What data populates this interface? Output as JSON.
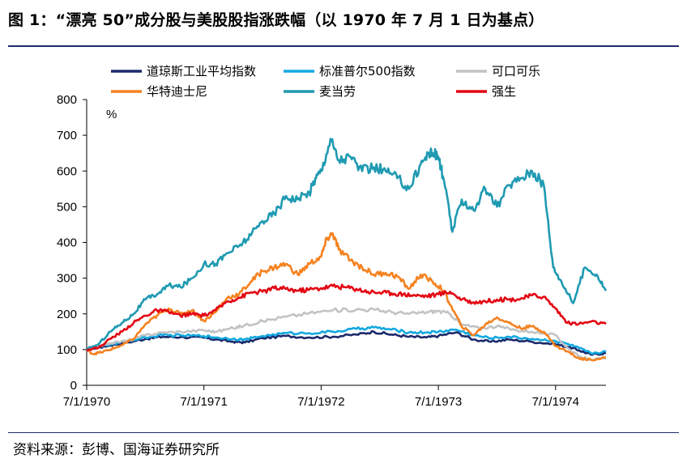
{
  "header": {
    "title": "图 1：“漂亮 50”成分股与美股股指涨跌幅（以 1970 年 7 月 1 日为基点）"
  },
  "footer": {
    "source": "资料来源：彭博、国海证券研究所"
  },
  "colors": {
    "rule": "#1f2a6b"
  },
  "chart_data": {
    "type": "line",
    "title": "",
    "ylabel": "%",
    "xlabel": "",
    "ylim": [
      0,
      800
    ],
    "xlim": [
      1970.5,
      1974.93
    ],
    "yticks": [
      0,
      100,
      200,
      300,
      400,
      500,
      600,
      700,
      800
    ],
    "xticks": [
      {
        "value": 1970.5,
        "label": "7/1/1970"
      },
      {
        "value": 1971.5,
        "label": "7/1/1971"
      },
      {
        "value": 1972.5,
        "label": "7/1/1972"
      },
      {
        "value": 1973.5,
        "label": "7/1/1973"
      },
      {
        "value": 1974.5,
        "label": "7/1/1974"
      }
    ],
    "grid": false,
    "legend_placement": "top",
    "series": [
      {
        "name": "道琼斯工业平均指数",
        "color": "#1b2a6b",
        "x": [
          1970.5,
          1970.6,
          1970.7,
          1970.85,
          1971.0,
          1971.15,
          1971.3,
          1971.5,
          1971.6,
          1971.75,
          1971.85,
          1972.0,
          1972.2,
          1972.4,
          1972.6,
          1972.8,
          1972.95,
          1973.1,
          1973.25,
          1973.4,
          1973.5,
          1973.65,
          1973.8,
          1973.95,
          1974.1,
          1974.3,
          1974.5,
          1974.6,
          1974.7,
          1974.8,
          1974.93
        ],
        "y": [
          100,
          106,
          112,
          120,
          130,
          136,
          135,
          133,
          128,
          122,
          120,
          132,
          138,
          134,
          136,
          142,
          150,
          142,
          136,
          134,
          138,
          148,
          128,
          122,
          128,
          122,
          115,
          108,
          98,
          86,
          90
        ]
      },
      {
        "name": "标准普尔500指数",
        "color": "#12a8e0",
        "x": [
          1970.5,
          1970.6,
          1970.7,
          1970.85,
          1971.0,
          1971.15,
          1971.3,
          1971.5,
          1971.6,
          1971.75,
          1971.85,
          1972.0,
          1972.2,
          1972.4,
          1972.6,
          1972.8,
          1972.95,
          1973.1,
          1973.25,
          1973.4,
          1973.5,
          1973.65,
          1973.8,
          1973.95,
          1974.1,
          1974.3,
          1974.5,
          1974.6,
          1974.7,
          1974.8,
          1974.93
        ],
        "y": [
          100,
          108,
          115,
          124,
          134,
          140,
          140,
          138,
          134,
          130,
          128,
          138,
          146,
          146,
          150,
          158,
          162,
          156,
          148,
          148,
          150,
          156,
          140,
          132,
          136,
          130,
          124,
          116,
          104,
          90,
          94
        ]
      },
      {
        "name": "可口可乐",
        "color": "#c3c3c3",
        "x": [
          1970.5,
          1970.6,
          1970.7,
          1970.85,
          1971.0,
          1971.15,
          1971.3,
          1971.5,
          1971.6,
          1971.75,
          1971.85,
          1972.0,
          1972.2,
          1972.4,
          1972.6,
          1972.8,
          1972.95,
          1973.1,
          1973.25,
          1973.4,
          1973.5,
          1973.6,
          1973.7,
          1973.85,
          1974.0,
          1974.15,
          1974.3,
          1974.5,
          1974.6,
          1974.7,
          1974.8,
          1974.93
        ],
        "y": [
          100,
          110,
          118,
          125,
          140,
          148,
          150,
          154,
          150,
          160,
          168,
          180,
          192,
          202,
          210,
          212,
          212,
          205,
          200,
          205,
          208,
          200,
          170,
          160,
          165,
          155,
          150,
          140,
          105,
          80,
          72,
          75
        ]
      },
      {
        "name": "华特迪士尼",
        "color": "#f58220",
        "x": [
          1970.5,
          1970.55,
          1970.62,
          1970.7,
          1970.8,
          1970.9,
          1971.0,
          1971.1,
          1971.2,
          1971.3,
          1971.4,
          1971.5,
          1971.6,
          1971.7,
          1971.8,
          1971.9,
          1972.0,
          1972.1,
          1972.2,
          1972.3,
          1972.4,
          1972.5,
          1972.55,
          1972.6,
          1972.65,
          1972.75,
          1972.85,
          1972.95,
          1973.05,
          1973.15,
          1973.25,
          1973.35,
          1973.45,
          1973.55,
          1973.6,
          1973.7,
          1973.8,
          1973.9,
          1974.0,
          1974.1,
          1974.2,
          1974.3,
          1974.4,
          1974.5,
          1974.6,
          1974.7,
          1974.8,
          1974.93
        ],
        "y": [
          100,
          88,
          92,
          100,
          112,
          130,
          170,
          195,
          215,
          200,
          210,
          180,
          205,
          245,
          255,
          290,
          320,
          330,
          340,
          310,
          340,
          360,
          410,
          425,
          380,
          350,
          330,
          310,
          315,
          305,
          270,
          310,
          290,
          265,
          225,
          165,
          140,
          170,
          190,
          175,
          160,
          165,
          150,
          110,
          95,
          75,
          72,
          78
        ]
      },
      {
        "name": "麦当劳",
        "color": "#1f9ab2",
        "x": [
          1970.5,
          1970.6,
          1970.7,
          1970.8,
          1970.9,
          1971.0,
          1971.1,
          1971.2,
          1971.3,
          1971.4,
          1971.5,
          1971.6,
          1971.7,
          1971.8,
          1971.9,
          1972.0,
          1972.1,
          1972.2,
          1972.3,
          1972.4,
          1972.45,
          1972.5,
          1972.58,
          1972.65,
          1972.75,
          1972.85,
          1972.95,
          1973.05,
          1973.15,
          1973.25,
          1973.35,
          1973.42,
          1973.45,
          1973.5,
          1973.55,
          1973.62,
          1973.7,
          1973.8,
          1973.9,
          1974.0,
          1974.1,
          1974.2,
          1974.3,
          1974.4,
          1974.48,
          1974.55,
          1974.65,
          1974.75,
          1974.85,
          1974.93
        ],
        "y": [
          100,
          115,
          150,
          175,
          200,
          240,
          255,
          280,
          275,
          300,
          340,
          340,
          370,
          390,
          420,
          460,
          480,
          530,
          520,
          540,
          580,
          600,
          690,
          630,
          640,
          600,
          610,
          600,
          580,
          550,
          620,
          650,
          650,
          640,
          570,
          430,
          520,
          490,
          550,
          500,
          560,
          580,
          600,
          560,
          330,
          290,
          230,
          330,
          310,
          265
        ]
      },
      {
        "name": "强生",
        "color": "#e30613",
        "x": [
          1970.5,
          1970.6,
          1970.7,
          1970.8,
          1970.9,
          1971.0,
          1971.1,
          1971.2,
          1971.3,
          1971.4,
          1971.5,
          1971.6,
          1971.7,
          1971.8,
          1971.9,
          1972.0,
          1972.1,
          1972.2,
          1972.3,
          1972.4,
          1972.5,
          1972.6,
          1972.7,
          1972.8,
          1972.9,
          1973.0,
          1973.1,
          1973.2,
          1973.3,
          1973.4,
          1973.5,
          1973.6,
          1973.7,
          1973.8,
          1973.9,
          1974.0,
          1974.1,
          1974.2,
          1974.3,
          1974.4,
          1974.5,
          1974.6,
          1974.7,
          1974.8,
          1974.93
        ],
        "y": [
          100,
          105,
          130,
          150,
          175,
          195,
          210,
          205,
          195,
          200,
          195,
          210,
          235,
          245,
          260,
          262,
          272,
          270,
          265,
          268,
          272,
          278,
          275,
          270,
          262,
          260,
          258,
          255,
          252,
          250,
          255,
          262,
          240,
          232,
          235,
          240,
          240,
          242,
          252,
          248,
          215,
          175,
          172,
          178,
          172
        ]
      }
    ]
  }
}
